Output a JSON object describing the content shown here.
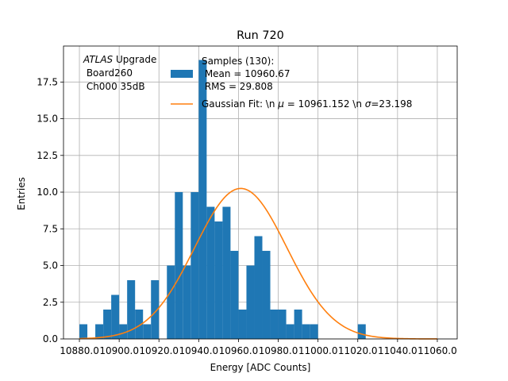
{
  "colors": {
    "histogram": "#1f77b4",
    "fit": "#ff7f0e",
    "grid": "#b0b0b0",
    "axes": "#000000"
  },
  "chart_data": {
    "type": "bar",
    "title": "Run 720",
    "xlabel": "Energy [ADC Counts]",
    "ylabel": "Entries",
    "xlim": [
      10872,
      11070
    ],
    "ylim": [
      0,
      19.95
    ],
    "grid": true,
    "x_ticks": [
      10880,
      10900,
      10920,
      10940,
      10960,
      10980,
      11000,
      11020,
      11040,
      11060
    ],
    "x_tick_labels": [
      "10880.0",
      "10900.0",
      "10920.0",
      "10940.0",
      "10960.0",
      "10980.0",
      "11000.0",
      "11020.0",
      "11040.0",
      "11060.0"
    ],
    "y_ticks": [
      0,
      2.5,
      5,
      7.5,
      10,
      12.5,
      15,
      17.5
    ],
    "y_tick_labels": [
      "0.0",
      "2.5",
      "5.0",
      "7.5",
      "10.0",
      "12.5",
      "15.0",
      "17.5"
    ],
    "annotation_lines": [
      "ATLAS Upgrade",
      " Board260",
      " Ch000 35dB"
    ],
    "annotation_italic": "ATLAS",
    "histogram": {
      "label_lines": [
        "Samples (130):",
        " Mean = 10960.67",
        " RMS = 29.808"
      ],
      "bin_width": 4,
      "bin_edges_start": 10880,
      "counts": [
        1,
        0,
        1,
        2,
        3,
        1,
        4,
        2,
        1,
        4,
        0,
        5,
        10,
        5,
        10,
        19,
        9,
        8,
        9,
        6,
        2,
        5,
        7,
        6,
        2,
        2,
        1,
        2,
        1,
        1,
        0,
        0,
        0,
        0,
        0,
        1
      ]
    },
    "fit": {
      "type": "gaussian",
      "label": "Gaussian Fit: \\n $\\mu$ = 10961.152 \\n $\\sigma$=23.198",
      "label_parts": [
        "Gaussian Fit: \\n ",
        "μ",
        " = 10961.152 \\n ",
        "σ",
        "=23.198"
      ],
      "mu": 10961.152,
      "sigma": 23.198,
      "amplitude": 10.25,
      "x_range": [
        10880,
        11060
      ]
    },
    "legend_position": "upper center"
  }
}
